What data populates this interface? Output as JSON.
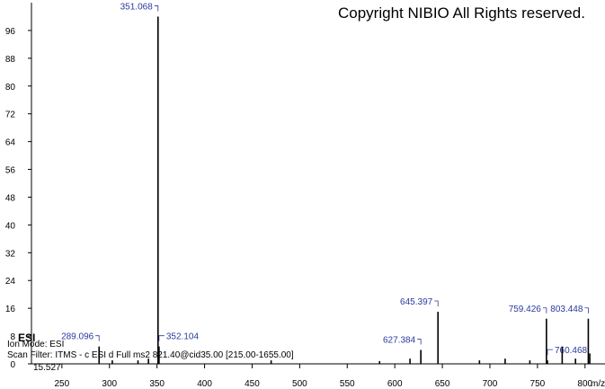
{
  "chart_data": {
    "type": "stick",
    "copyright": "Copyright NIBIO All Rights reserved.",
    "ion_mode_title": "ESI",
    "ion_mode": "Ion Mode: ESI",
    "scan_filter": "Scan Filter: ITMS - c ESI d Full ms2 821.40@cid35.00 [215.00-1655.00]",
    "retention_time": "15.527",
    "x_label": "m/z",
    "xlim": [
      218,
      821
    ],
    "ylim": [
      0,
      104
    ],
    "xticks": [
      250,
      300,
      350,
      400,
      450,
      500,
      550,
      600,
      650,
      700,
      750,
      800
    ],
    "yticks": [
      0,
      8,
      16,
      24,
      32,
      40,
      48,
      56,
      64,
      72,
      80,
      88,
      96
    ],
    "series": [
      {
        "x": [
          289.096,
          351.068,
          352.104,
          627.384,
          645.397,
          759.426,
          760.468,
          803.448
        ],
        "values": [
          5,
          100,
          5,
          4,
          15,
          13,
          1,
          13
        ],
        "labels": true,
        "color": "#000000",
        "label_color": "#2a3a9e"
      },
      {
        "x": [
          303,
          330,
          341,
          470,
          584,
          616,
          689,
          716,
          742,
          776,
          790,
          805
        ],
        "values": [
          1,
          1,
          1.5,
          1,
          0.8,
          1.5,
          1,
          1.5,
          1,
          5,
          1.5,
          3
        ],
        "labels": false,
        "color": "#000000"
      }
    ]
  }
}
